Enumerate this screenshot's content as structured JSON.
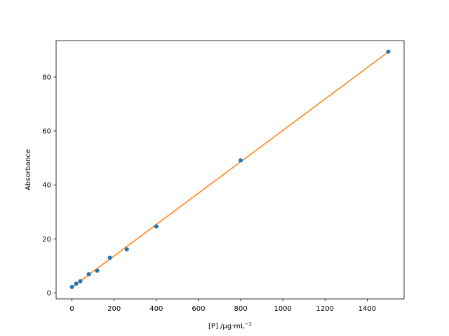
{
  "chart_data": {
    "type": "scatter",
    "title": "",
    "xlabel": "[P] /µg·mL",
    "xlabel_superscript": "−1",
    "ylabel": "Absorbance",
    "xlim": [
      -75,
      1575
    ],
    "ylim": [
      -2.25,
      93.5
    ],
    "xticks": [
      0,
      200,
      400,
      600,
      800,
      1000,
      1200,
      1400
    ],
    "yticks": [
      0,
      20,
      40,
      60,
      80
    ],
    "grid": false,
    "legend": "none",
    "colors": {
      "points": "#1f77b4",
      "fit": "#ff7f0e"
    },
    "series": [
      {
        "kind": "points",
        "x": [
          0,
          20,
          40,
          80,
          120,
          180,
          260,
          400,
          800,
          1500
        ],
        "y": [
          2.2,
          3.4,
          4.3,
          6.9,
          8.2,
          13.0,
          16.1,
          24.6,
          49.1,
          89.4
        ]
      },
      {
        "kind": "fit-line",
        "x": [
          0,
          1500
        ],
        "y": [
          2.05,
          89.3
        ]
      }
    ]
  }
}
